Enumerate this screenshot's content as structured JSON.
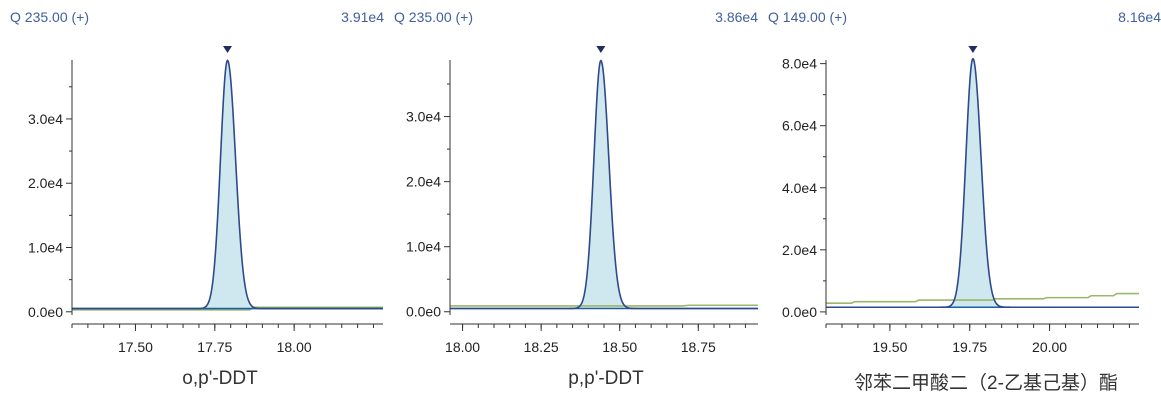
{
  "chart_data": [
    {
      "type": "line",
      "ion_label": "Q 235.00 (+)",
      "max_intensity_label": "3.91e4",
      "title": "o,p'-DDT",
      "xlabel": "",
      "ylabel": "",
      "xlim": [
        17.3,
        18.28
      ],
      "ylim": [
        -500,
        41500
      ],
      "x_ticks": [
        17.5,
        17.75,
        18.0
      ],
      "x_tick_labels": [
        "17.50",
        "17.75",
        "18.00"
      ],
      "y_ticks": [
        0,
        10000,
        20000,
        30000
      ],
      "y_tick_labels": [
        "0.0e0",
        "1.0e4",
        "2.0e4",
        "3.0e4"
      ],
      "peak": {
        "rt": 17.79,
        "height": 39100,
        "width": 0.022
      },
      "baseline_level": 500,
      "series": [
        {
          "role": "quantifier",
          "color": "#2e4a8c",
          "points": [
            [
              17.3,
              500
            ],
            [
              17.66,
              500
            ],
            [
              17.72,
              700
            ],
            [
              17.75,
              2500
            ],
            [
              17.77,
              18000
            ],
            [
              17.79,
              39100
            ],
            [
              17.81,
              18000
            ],
            [
              17.83,
              2500
            ],
            [
              17.86,
              600
            ],
            [
              18.28,
              500
            ]
          ]
        },
        {
          "role": "qualifier",
          "color": "#9ab86a",
          "points": [
            [
              17.3,
              300
            ],
            [
              17.86,
              300
            ],
            [
              17.87,
              700
            ],
            [
              18.28,
              700
            ]
          ]
        }
      ],
      "peak_fill": "#cfe7ef",
      "baseline_color": "#1f5fa6",
      "peak_marker_color": "#1e2f5e"
    },
    {
      "type": "line",
      "ion_label": "Q 235.00 (+)",
      "max_intensity_label": "3.86e4",
      "title": "p,p'-DDT",
      "xlabel": "",
      "ylabel": "",
      "xlim": [
        17.96,
        18.94
      ],
      "ylim": [
        -500,
        41000
      ],
      "x_ticks": [
        18.0,
        18.25,
        18.5,
        18.75
      ],
      "x_tick_labels": [
        "18.00",
        "18.25",
        "18.50",
        "18.75"
      ],
      "y_ticks": [
        0,
        10000,
        20000,
        30000
      ],
      "y_tick_labels": [
        "0.0e0",
        "1.0e4",
        "2.0e4",
        "3.0e4"
      ],
      "peak": {
        "rt": 18.44,
        "height": 38600,
        "width": 0.022
      },
      "baseline_level": 500,
      "series": [
        {
          "role": "quantifier",
          "color": "#2e4a8c",
          "points": [
            [
              17.96,
              500
            ],
            [
              18.33,
              400
            ],
            [
              18.37,
              800
            ],
            [
              18.4,
              3000
            ],
            [
              18.42,
              18000
            ],
            [
              18.44,
              38600
            ],
            [
              18.46,
              18000
            ],
            [
              18.48,
              3000
            ],
            [
              18.51,
              700
            ],
            [
              18.94,
              600
            ]
          ]
        },
        {
          "role": "qualifier",
          "color": "#9ab86a",
          "points": [
            [
              17.96,
              900
            ],
            [
              18.7,
              900
            ],
            [
              18.72,
              1000
            ],
            [
              18.94,
              1000
            ]
          ]
        }
      ],
      "peak_fill": "#cfe7ef",
      "baseline_color": "#1f5fa6",
      "peak_marker_color": "#1e2f5e"
    },
    {
      "type": "line",
      "ion_label": "Q 149.00 (+)",
      "max_intensity_label": "8.16e4",
      "title": "邻苯二甲酸二（2-乙基己基）酯",
      "xlabel": "",
      "ylabel": "",
      "xlim": [
        19.3,
        20.28
      ],
      "ylim": [
        -1000,
        86000
      ],
      "x_ticks": [
        19.5,
        19.75,
        20.0
      ],
      "x_tick_labels": [
        "19.50",
        "19.75",
        "20.00"
      ],
      "y_ticks": [
        0,
        20000,
        40000,
        60000,
        80000
      ],
      "y_tick_labels": [
        "0.0e0",
        "2.0e4",
        "4.0e4",
        "6.0e4",
        "8.0e4"
      ],
      "peak": {
        "rt": 19.76,
        "height": 81600,
        "width": 0.022
      },
      "baseline_level": 1500,
      "series": [
        {
          "role": "quantifier",
          "color": "#2e4a8c",
          "points": [
            [
              19.3,
              1500
            ],
            [
              19.68,
              1500
            ],
            [
              19.71,
              3000
            ],
            [
              19.73,
              25000
            ],
            [
              19.76,
              81600
            ],
            [
              19.79,
              25000
            ],
            [
              19.81,
              3000
            ],
            [
              19.84,
              1800
            ],
            [
              20.28,
              2000
            ]
          ]
        },
        {
          "role": "qualifier",
          "color": "#9ab86a",
          "points": [
            [
              19.3,
              2800
            ],
            [
              19.38,
              2800
            ],
            [
              19.39,
              3300
            ],
            [
              19.58,
              3300
            ],
            [
              19.59,
              3800
            ],
            [
              19.82,
              3800
            ],
            [
              19.83,
              4200
            ],
            [
              19.98,
              4200
            ],
            [
              19.99,
              4600
            ],
            [
              20.12,
              4600
            ],
            [
              20.13,
              5200
            ],
            [
              20.2,
              5200
            ],
            [
              20.21,
              5900
            ],
            [
              20.28,
              5900
            ]
          ]
        }
      ],
      "peak_fill": "#cfe7ef",
      "baseline_color": "#1f5fa6",
      "peak_marker_color": "#1e2f5e"
    }
  ]
}
